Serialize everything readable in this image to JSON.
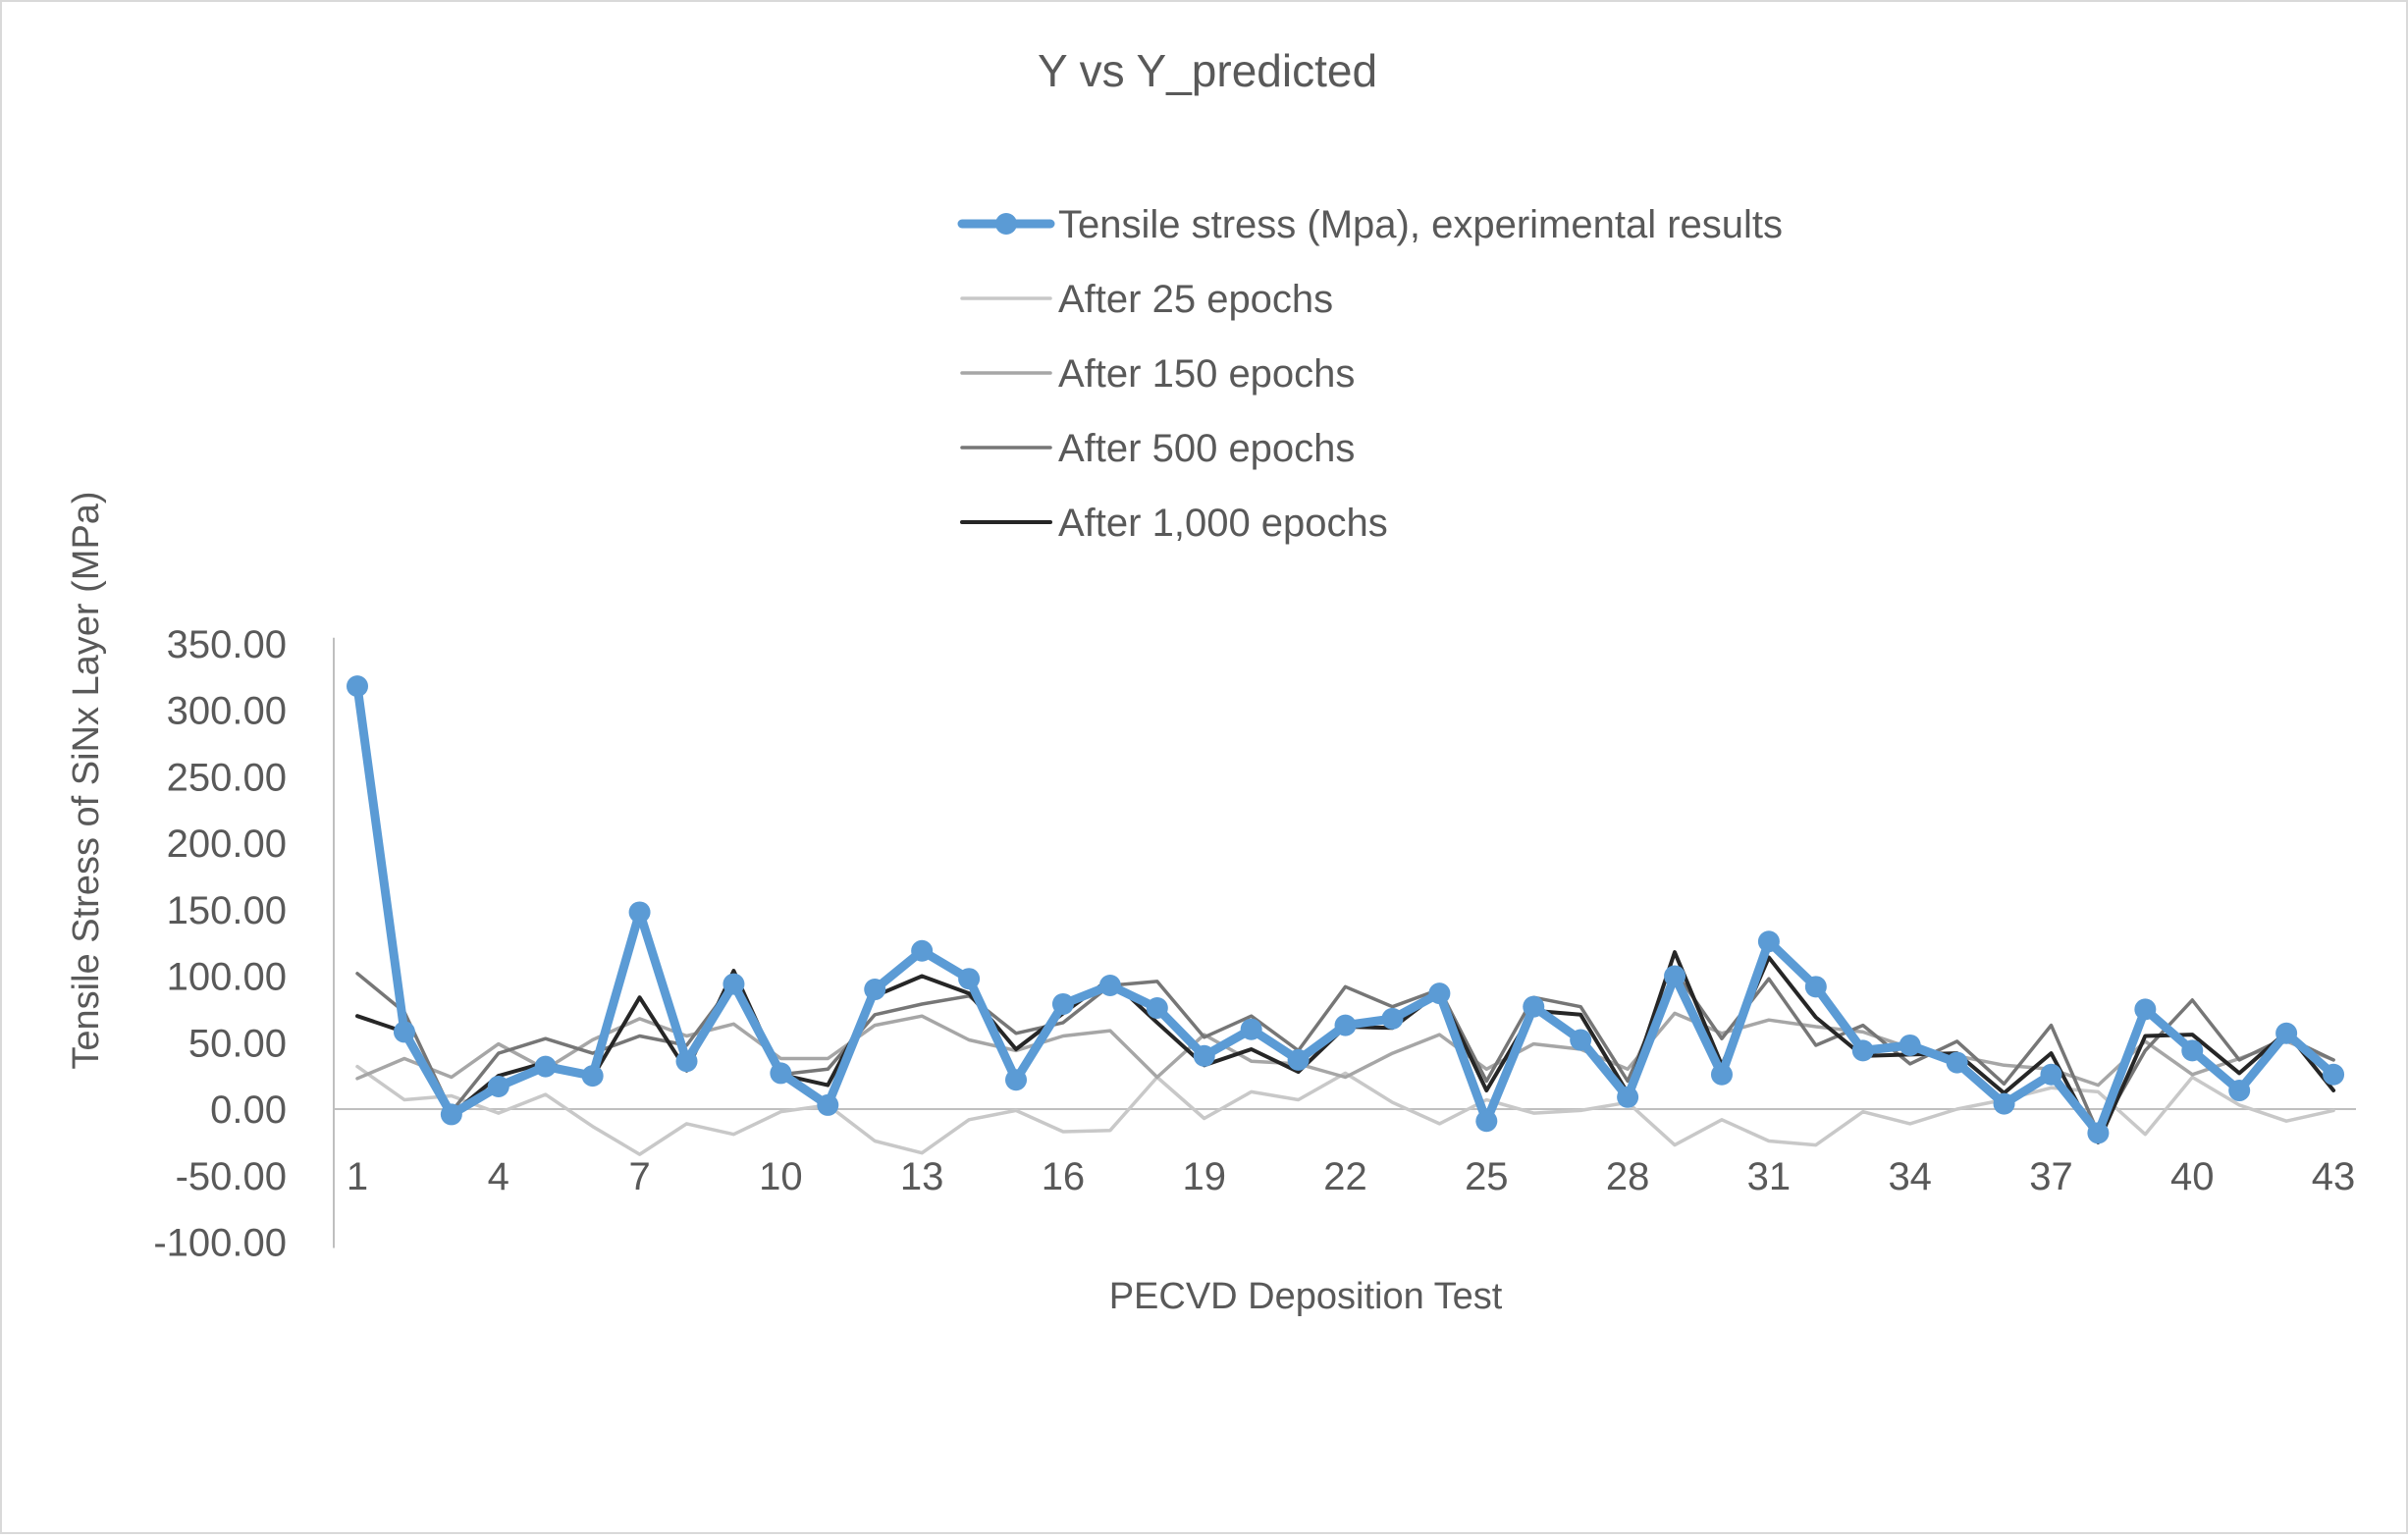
{
  "chart_data": {
    "type": "line",
    "title": "Y vs Y_predicted",
    "xlabel": "PECVD Deposition Test",
    "ylabel": "Tensile Stress of SiNx Layer (MPa)",
    "ylim": [
      -100,
      350
    ],
    "yticks": [
      "-100.00",
      "-50.00",
      "0.00",
      "50.00",
      "100.00",
      "150.00",
      "200.00",
      "250.00",
      "300.00",
      "350.00"
    ],
    "ytick_values": [
      -100,
      -50,
      0,
      50,
      100,
      150,
      200,
      250,
      300,
      350
    ],
    "x": [
      1,
      2,
      3,
      4,
      5,
      6,
      7,
      8,
      9,
      10,
      11,
      12,
      13,
      14,
      15,
      16,
      17,
      18,
      19,
      20,
      21,
      22,
      23,
      24,
      25,
      26,
      27,
      28,
      29,
      30,
      31,
      32,
      33,
      34,
      35,
      36,
      37,
      38,
      39,
      40,
      41,
      42,
      43
    ],
    "xtick_labels": [
      "1",
      "4",
      "7",
      "10",
      "13",
      "16",
      "19",
      "22",
      "25",
      "28",
      "31",
      "34",
      "37",
      "40",
      "43"
    ],
    "grid": false,
    "legend_position": "top-right",
    "series": [
      {
        "name": "Tensile stress (Mpa), experimental results",
        "color": "#5b9bd5",
        "markers": true,
        "values": [
          318,
          58,
          -4,
          17,
          32,
          25,
          148,
          36,
          94,
          27,
          3,
          90,
          119,
          98,
          22,
          79,
          93,
          76,
          40,
          60,
          37,
          63,
          68,
          87,
          -9,
          77,
          52,
          9,
          100,
          26,
          126,
          92,
          44,
          48,
          35,
          4,
          26,
          -18,
          75,
          44,
          14,
          57,
          26
        ]
      },
      {
        "name": "After 25 epochs",
        "color": "#c8c8c8",
        "markers": false,
        "values": [
          32,
          7,
          10,
          -3,
          11,
          -13,
          -34,
          -11,
          -19,
          -2,
          3,
          -24,
          -33,
          -8,
          -1,
          -17,
          -16,
          24,
          -7,
          13,
          7,
          27,
          5,
          -11,
          7,
          -3,
          -1,
          5,
          -27,
          -8,
          -24,
          -27,
          -2,
          -11,
          0,
          7,
          16,
          13,
          -19,
          24,
          3,
          -9,
          -1
        ]
      },
      {
        "name": "After 150 epochs",
        "color": "#a6a6a6",
        "markers": false,
        "values": [
          23,
          38,
          24,
          49,
          30,
          52,
          68,
          55,
          64,
          38,
          38,
          63,
          70,
          52,
          44,
          55,
          59,
          24,
          56,
          36,
          34,
          24,
          42,
          56,
          30,
          49,
          45,
          30,
          72,
          57,
          67,
          62,
          58,
          46,
          40,
          33,
          30,
          18,
          51,
          26,
          38,
          51,
          37
        ]
      },
      {
        "name": "After 500 epochs",
        "color": "#767676",
        "markers": false,
        "values": [
          102,
          73,
          -2,
          42,
          53,
          42,
          55,
          48,
          95,
          26,
          30,
          71,
          79,
          85,
          57,
          65,
          93,
          96,
          54,
          70,
          44,
          92,
          77,
          90,
          21,
          84,
          77,
          21,
          104,
          53,
          98,
          48,
          63,
          34,
          51,
          19,
          63,
          -18,
          44,
          82,
          37,
          54,
          37
        ]
      },
      {
        "name": "After 1,000 epochs",
        "color": "#262626",
        "markers": false,
        "values": [
          70,
          58,
          -4,
          25,
          35,
          24,
          84,
          29,
          104,
          26,
          18,
          85,
          100,
          87,
          45,
          72,
          98,
          65,
          33,
          45,
          28,
          62,
          61,
          88,
          14,
          74,
          71,
          12,
          118,
          33,
          114,
          69,
          40,
          41,
          42,
          12,
          42,
          -25,
          55,
          56,
          27,
          58,
          14
        ]
      }
    ]
  }
}
